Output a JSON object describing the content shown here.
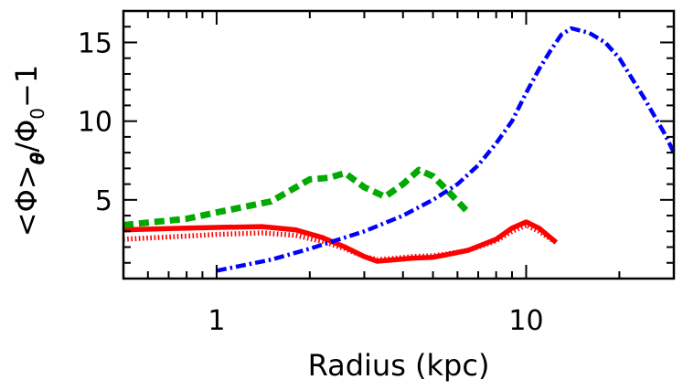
{
  "chart_data": {
    "type": "line",
    "xlabel": "Radius (kpc)",
    "ylabel": "<Φ>θ/Φ0−1",
    "ylabel_parts": {
      "open": "<Φ>",
      "sub1": "θ",
      "mid": "/Φ",
      "sub2": "0",
      "end": "−1"
    },
    "xscale": "log",
    "xlim": [
      0.5,
      30
    ],
    "ylim": [
      0,
      17
    ],
    "grid": false,
    "x_ticks": [
      {
        "value": 1,
        "label": "1"
      },
      {
        "value": 10,
        "label": "10"
      }
    ],
    "y_ticks": [
      {
        "value": 5,
        "label": "5"
      },
      {
        "value": 10,
        "label": "10"
      },
      {
        "value": 15,
        "label": "15"
      }
    ],
    "series": [
      {
        "style": "solid",
        "color": "#ff0000",
        "x": [
          0.5,
          0.8,
          1.0,
          1.4,
          1.8,
          2.2,
          2.6,
          3.0,
          3.3,
          3.8,
          4.3,
          5.0,
          5.5,
          6.5,
          8.0,
          9.0,
          10.0,
          11.0,
          12.5
        ],
        "y": [
          3.1,
          3.2,
          3.25,
          3.3,
          3.1,
          2.6,
          2.0,
          1.4,
          1.1,
          1.2,
          1.3,
          1.35,
          1.5,
          1.8,
          2.5,
          3.2,
          3.6,
          3.2,
          2.3
        ]
      },
      {
        "style": "dotted",
        "color": "#ff0000",
        "x": [
          0.5,
          0.8,
          1.0,
          1.4,
          1.8,
          2.2,
          2.6,
          3.0,
          3.3,
          3.8,
          4.3,
          5.0,
          5.5,
          6.5,
          8.0,
          9.0,
          10.0,
          11.0,
          12.5
        ],
        "y": [
          2.5,
          2.7,
          2.8,
          2.9,
          2.75,
          2.35,
          1.9,
          1.4,
          1.2,
          1.3,
          1.4,
          1.45,
          1.55,
          1.8,
          2.4,
          3.0,
          3.4,
          3.0,
          2.3
        ]
      },
      {
        "style": "dashed",
        "color": "#00aa00",
        "x": [
          0.5,
          0.8,
          1.0,
          1.5,
          2.0,
          2.3,
          2.6,
          3.0,
          3.5,
          4.0,
          4.5,
          5.0,
          5.5,
          6.5
        ],
        "y": [
          3.4,
          3.8,
          4.2,
          4.9,
          6.3,
          6.4,
          6.7,
          5.8,
          5.2,
          6.0,
          6.9,
          6.5,
          5.7,
          4.2
        ]
      },
      {
        "style": "dash-dot",
        "color": "#0000ff",
        "x": [
          1.0,
          1.5,
          2.0,
          3.0,
          4.0,
          5.0,
          6.0,
          7.0,
          8.0,
          9.0,
          10.0,
          11.0,
          12.0,
          13.0,
          14.0,
          16.0,
          18.0,
          20.0,
          24.0,
          28.0,
          30.0
        ],
        "y": [
          0.5,
          1.2,
          1.9,
          3.0,
          4.0,
          5.0,
          6.0,
          7.2,
          8.6,
          10.0,
          11.8,
          13.3,
          14.5,
          15.5,
          15.9,
          15.6,
          15.0,
          14.0,
          11.5,
          9.2,
          8.0
        ]
      }
    ]
  }
}
